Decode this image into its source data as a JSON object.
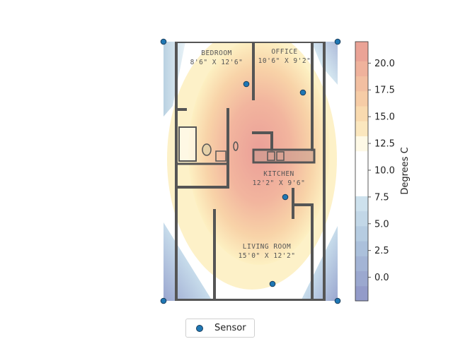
{
  "chart_data": {
    "type": "heatmap",
    "title": "",
    "colorbar": {
      "label": "Degrees C",
      "range": [
        -2.2,
        22.0
      ],
      "ticks": [
        0.0,
        2.5,
        5.0,
        7.5,
        10.0,
        12.5,
        15.0,
        17.5,
        20.0
      ],
      "tick_labels": [
        "0.0",
        "2.5",
        "5.0",
        "7.5",
        "10.0",
        "12.5",
        "15.0",
        "17.5",
        "20.0"
      ],
      "levels": [
        -2.2,
        -0.8,
        0.6,
        2.0,
        3.4,
        4.8,
        6.2,
        7.6,
        9.0,
        10.4,
        11.8,
        13.2,
        14.6,
        16.0,
        17.4,
        18.8,
        20.2,
        22.0
      ],
      "colormap": "RdYlBu_r",
      "colors": {
        "cold": "#9aa0cc",
        "cool": "#b6cfe0",
        "pale": "#d6eaf2",
        "neutral": "#ffffff",
        "warm_light": "#fdf0c2",
        "warm": "#f7c9a0",
        "hot": "#eb9f98"
      }
    },
    "room_labels": [
      {
        "name": "BEDROOM",
        "size": "8'6\" X 12'6\""
      },
      {
        "name": "OFFICE",
        "size": "10'6\" X 9'2\""
      },
      {
        "name": "KITCHEN",
        "size": "12'2\" X 9'6\""
      },
      {
        "name": "LIVING ROOM",
        "size": "15'0\" X 12'2\""
      }
    ],
    "legend": {
      "placement": "below",
      "entries": [
        "Sensor"
      ]
    },
    "sensor_color": "#1f77b4"
  }
}
